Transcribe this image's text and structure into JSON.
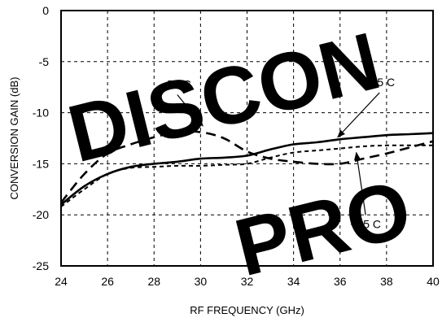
{
  "chart_data": {
    "type": "line",
    "title": "",
    "xlabel": "RF FREQUENCY (GHz)",
    "ylabel": "CONVERSION GAIN (dB)",
    "xlim": [
      24,
      40
    ],
    "ylim": [
      -25,
      0
    ],
    "xticks": [
      "24",
      "26",
      "28",
      "30",
      "32",
      "34",
      "36",
      "38",
      "40"
    ],
    "yticks": [
      "0",
      "-5",
      "-10",
      "-15",
      "-20",
      "-25"
    ],
    "grid": true,
    "series": [
      {
        "name": "+25 C",
        "line_style": "solid",
        "x": [
          24,
          25,
          26,
          27,
          28,
          29,
          30,
          31,
          32,
          33,
          34,
          35,
          36,
          37,
          38,
          39,
          40
        ],
        "y": [
          -19.0,
          -17.2,
          -16.0,
          -15.3,
          -15.0,
          -14.8,
          -14.5,
          -14.4,
          -14.2,
          -13.6,
          -13.1,
          -12.9,
          -12.6,
          -12.4,
          -12.2,
          -12.1,
          -12.0
        ]
      },
      {
        "name": "-55 C",
        "line_style": "dashed",
        "x": [
          24,
          25,
          26,
          27,
          28,
          29,
          30,
          31,
          32,
          33,
          34,
          35,
          36,
          37,
          38,
          39,
          40
        ],
        "y": [
          -18.8,
          -16.0,
          -14.0,
          -13.1,
          -12.4,
          -11.9,
          -11.9,
          -12.5,
          -13.8,
          -14.5,
          -14.8,
          -15.0,
          -15.0,
          -14.5,
          -14.0,
          -13.4,
          -12.8
        ]
      },
      {
        "name": "+85 C",
        "line_style": "short-dash",
        "x": [
          24,
          25,
          26,
          27,
          28,
          29,
          30,
          31,
          32,
          33,
          34,
          35,
          36,
          37,
          38,
          39,
          40
        ],
        "y": [
          -19.2,
          -17.5,
          -16.0,
          -15.4,
          -15.3,
          -15.2,
          -15.2,
          -15.1,
          -15.0,
          -14.4,
          -13.9,
          -13.7,
          -13.5,
          -13.3,
          -13.2,
          -13.2,
          -13.2
        ]
      }
    ],
    "annotations": [
      {
        "text": "-55 C",
        "x": 29.0,
        "y": -7.6,
        "arrow_to": [
          30.1,
          -11.3
        ]
      },
      {
        "text": "+25 C",
        "x": 37.7,
        "y": -7.4,
        "arrow_to": [
          35.9,
          -12.4
        ]
      },
      {
        "text": "+85 C",
        "x": 37.1,
        "y": -21.3,
        "arrow_to": [
          36.7,
          -13.9
        ]
      }
    ]
  },
  "watermark": [
    "DISCON",
    "PRO"
  ]
}
